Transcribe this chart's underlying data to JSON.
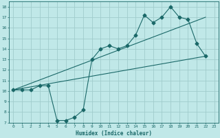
{
  "background_color": "#c0e8e8",
  "grid_color": "#a0cccc",
  "line_color": "#1a6868",
  "xlabel": "Humidex (Indice chaleur)",
  "ylabel": "",
  "xlim": [
    -0.5,
    23.5
  ],
  "ylim": [
    7,
    18.5
  ],
  "xticks": [
    0,
    1,
    2,
    3,
    4,
    5,
    6,
    7,
    8,
    9,
    10,
    11,
    12,
    13,
    14,
    15,
    16,
    17,
    18,
    19,
    20,
    21,
    22,
    23
  ],
  "yticks": [
    7,
    8,
    9,
    10,
    11,
    12,
    13,
    14,
    15,
    16,
    17,
    18
  ],
  "line1_x": [
    0,
    1,
    2,
    3,
    4,
    5,
    6,
    7,
    8,
    9,
    10,
    11,
    12,
    13,
    14,
    15,
    16,
    17,
    18,
    19,
    20,
    21,
    22
  ],
  "line1_y": [
    10.1,
    10.1,
    10.1,
    10.5,
    10.5,
    7.2,
    7.2,
    7.5,
    8.2,
    13.0,
    14.0,
    14.3,
    14.0,
    14.3,
    15.3,
    17.2,
    16.5,
    17.0,
    18.0,
    17.0,
    16.8,
    14.5,
    13.3
  ],
  "line3_x": [
    0,
    22
  ],
  "line3_y": [
    10.1,
    13.3
  ],
  "line4_x": [
    0,
    22
  ],
  "line4_y": [
    10.1,
    17.0
  ]
}
